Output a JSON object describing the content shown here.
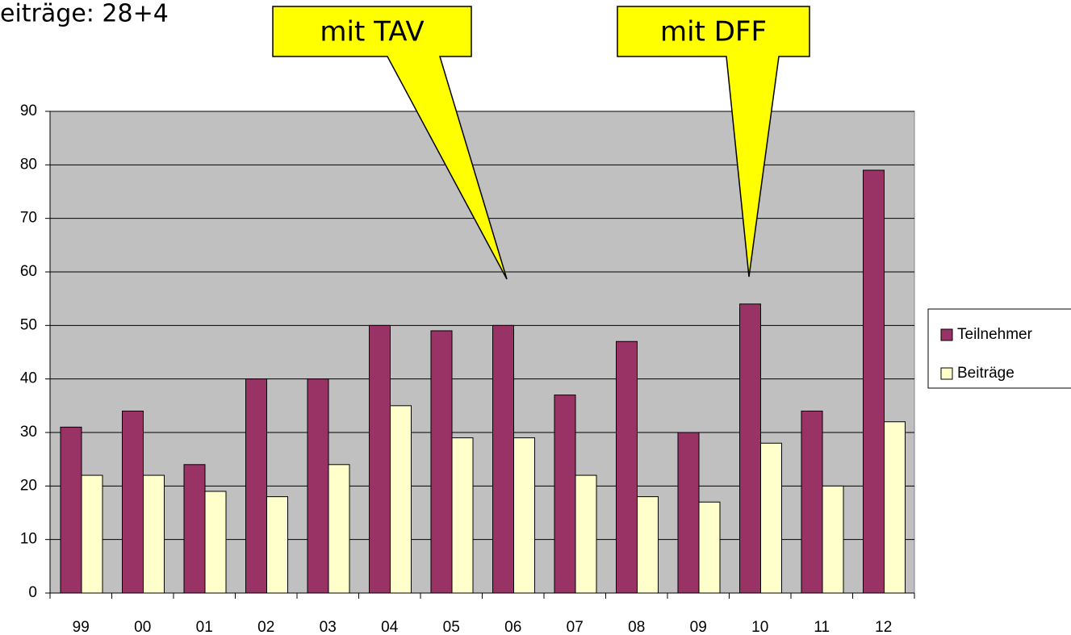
{
  "chart_data": {
    "type": "bar",
    "title": "eiträge: 28+4",
    "annotations": [
      "mit TAV",
      "mit DFF"
    ],
    "categories": [
      "99",
      "00",
      "01",
      "02",
      "03",
      "04",
      "05",
      "06",
      "07",
      "08",
      "09",
      "10",
      "11",
      "12"
    ],
    "series": [
      {
        "name": "Teilnehmer",
        "color": "#993366",
        "values": [
          31,
          34,
          24,
          40,
          40,
          50,
          49,
          50,
          37,
          47,
          30,
          54,
          34,
          79
        ]
      },
      {
        "name": "Beiträge",
        "color": "#ffffcc",
        "values": [
          22,
          22,
          19,
          18,
          24,
          35,
          29,
          29,
          22,
          18,
          17,
          28,
          20,
          32
        ]
      }
    ],
    "ylim": [
      0,
      90
    ],
    "yticks": [
      0,
      10,
      20,
      30,
      40,
      50,
      60,
      70,
      80,
      90
    ],
    "grid": true,
    "legend": "right"
  }
}
